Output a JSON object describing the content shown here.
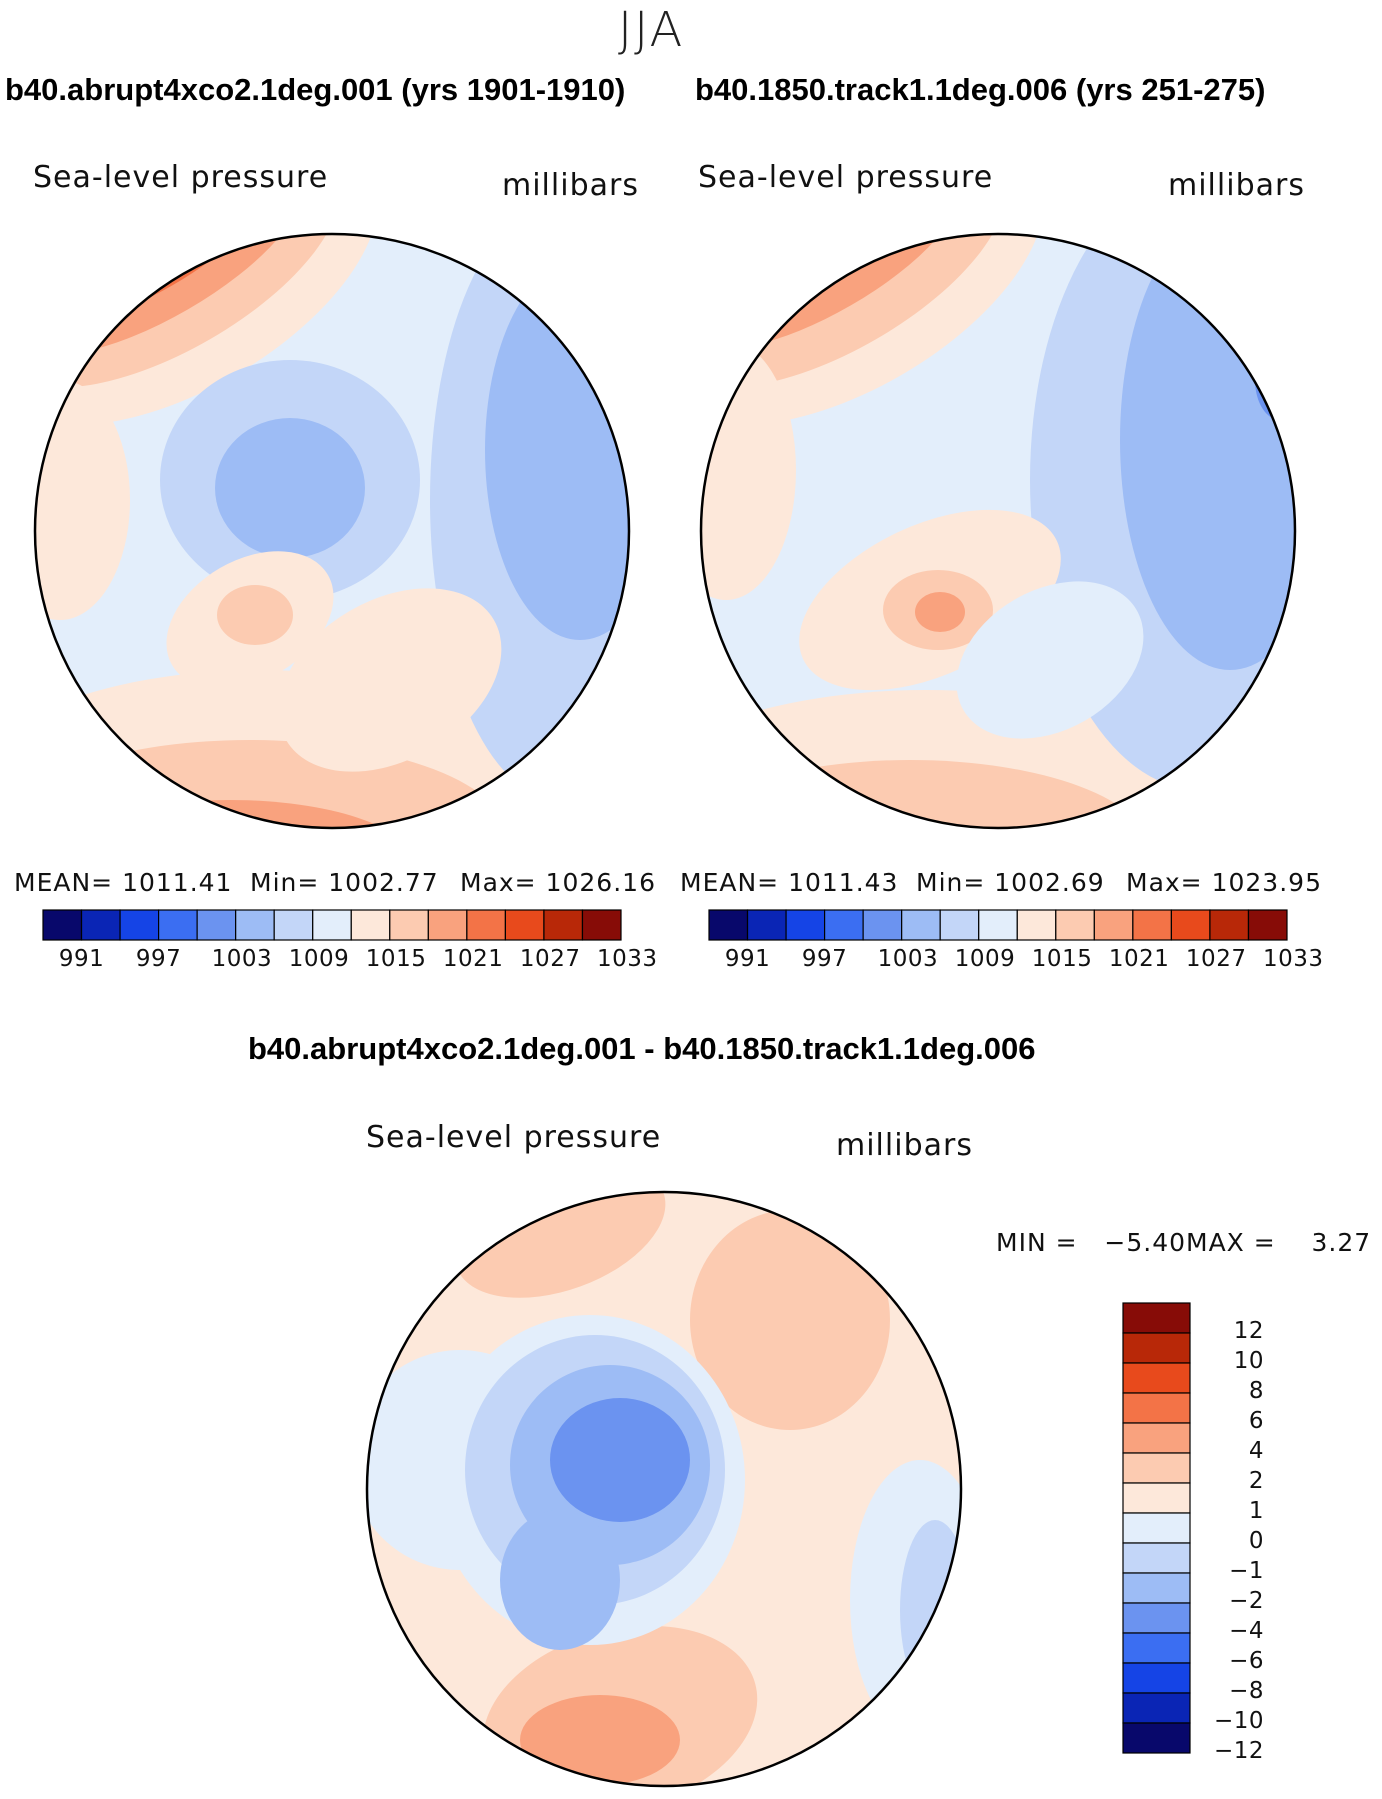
{
  "season": "JJA",
  "panels": [
    {
      "title": "b40.abrupt4xco2.1deg.001 (yrs 1901-1910)",
      "variable": "Sea-level pressure",
      "units": "millibars",
      "mean_label": "MEAN=",
      "mean": "1011.41",
      "min_label": "Min=",
      "min": "1002.77",
      "max_label": "Max=",
      "max": "1026.16"
    },
    {
      "title": "b40.1850.track1.1deg.006 (yrs 251-275)",
      "variable": "Sea-level pressure",
      "units": "millibars",
      "mean_label": "MEAN=",
      "mean": "1011.43",
      "min_label": "Min=",
      "min": "1002.69",
      "max_label": "Max=",
      "max": "1023.95"
    }
  ],
  "abs_colorbar": {
    "ticks": [
      "991",
      "997",
      "1003",
      "1009",
      "1015",
      "1021",
      "1027",
      "1033"
    ],
    "colors": [
      "#08086b",
      "#0a25b5",
      "#1544e6",
      "#3b6ef2",
      "#6b93f0",
      "#9dbcf5",
      "#c3d6f8",
      "#e3eefb",
      "#fde8da",
      "#fccbb1",
      "#f9a27e",
      "#f37347",
      "#e84a1c",
      "#b82808",
      "#870c07"
    ]
  },
  "diff": {
    "title": "b40.abrupt4xco2.1deg.001 - b40.1850.track1.1deg.006",
    "variable": "Sea-level pressure",
    "units": "millibars",
    "min_label": "MIN =",
    "min": "-5.40",
    "max_label": "MAX =",
    "max": "3.27",
    "colorbar": {
      "labels": [
        "12",
        "10",
        "8",
        "6",
        "4",
        "2",
        "1",
        "0",
        "-1",
        "-2",
        "-4",
        "-6",
        "-8",
        "-10",
        "-12"
      ],
      "colors": [
        "#870c07",
        "#b82808",
        "#e84a1c",
        "#f37347",
        "#f9a27e",
        "#fccbb1",
        "#fde8da",
        "#e3eefb",
        "#c3d6f8",
        "#9dbcf5",
        "#6b93f0",
        "#3b6ef2",
        "#1544e6",
        "#0a25b5",
        "#08086b"
      ]
    }
  }
}
